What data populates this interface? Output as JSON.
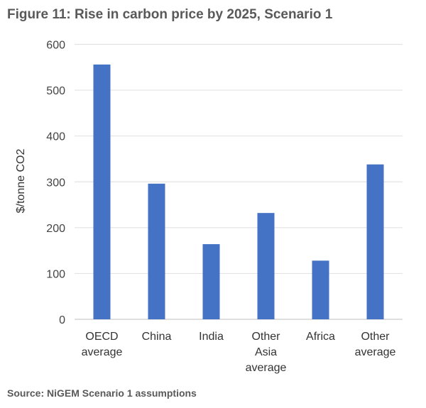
{
  "title": "Figure 11: Rise in carbon price by 2025, Scenario 1",
  "source": "Source: NiGEM Scenario 1 assumptions",
  "chart_data": {
    "type": "bar",
    "title": "Figure 11: Rise in carbon price by 2025, Scenario 1",
    "xlabel": "",
    "ylabel": "$/tonne CO2",
    "categories": [
      [
        "OECD",
        "average"
      ],
      [
        "China"
      ],
      [
        "India"
      ],
      [
        "Other",
        "Asia",
        "average"
      ],
      [
        "Africa"
      ],
      [
        "Other",
        "average"
      ]
    ],
    "values": [
      556,
      296,
      164,
      232,
      128,
      338
    ],
    "ylim": [
      0,
      600
    ],
    "yticks": [
      0,
      100,
      200,
      300,
      400,
      500,
      600
    ],
    "grid": true,
    "legend": "none",
    "bar_color": "#4472C4"
  }
}
